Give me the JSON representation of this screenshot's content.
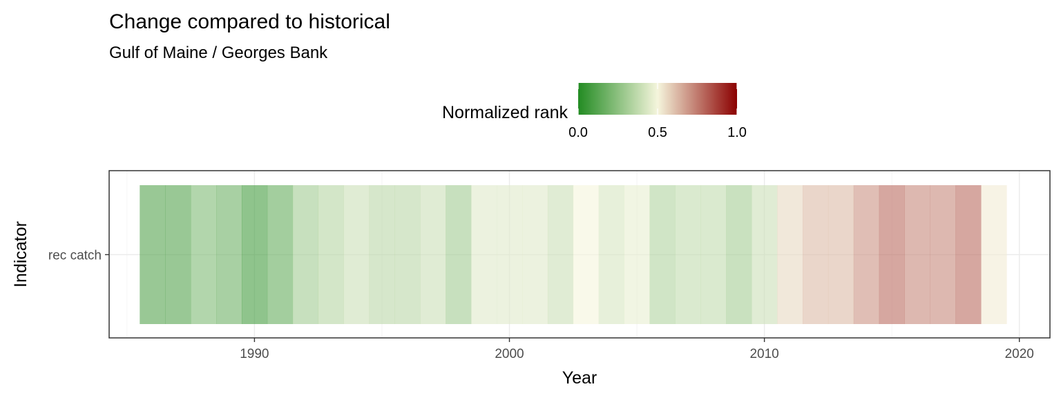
{
  "chart_data": {
    "type": "heatmap",
    "title": "Change compared to historical",
    "subtitle": "Gulf of Maine / Georges Bank",
    "xlabel": "Year",
    "ylabel": "Indicator",
    "xlim": [
      1984.3,
      2021.2
    ],
    "xticks": [
      1990,
      2000,
      2010,
      2020
    ],
    "rows": [
      "rec catch"
    ],
    "legend": {
      "title": "Normalized rank",
      "placement": "top",
      "range": [
        0,
        1
      ],
      "ticks": [
        "0.0",
        "0.5",
        "1.0"
      ],
      "colors": {
        "low": "#228B22",
        "mid": "#F5F5DC",
        "high": "#8B0000"
      }
    },
    "grid": true,
    "tile_opacity": 0.6,
    "x": [
      1986,
      1987,
      1988,
      1989,
      1990,
      1991,
      1992,
      1993,
      1994,
      1995,
      1996,
      1997,
      1998,
      1999,
      2000,
      2001,
      2002,
      2003,
      2004,
      2005,
      2006,
      2007,
      2008,
      2009,
      2010,
      2011,
      2012,
      2013,
      2014,
      2015,
      2016,
      2017,
      2018,
      2019
    ],
    "values": [
      0.12,
      0.12,
      0.22,
      0.18,
      0.08,
      0.16,
      0.3,
      0.35,
      0.4,
      0.36,
      0.36,
      0.4,
      0.3,
      0.45,
      0.45,
      0.45,
      0.4,
      0.5,
      0.43,
      0.47,
      0.34,
      0.38,
      0.38,
      0.31,
      0.4,
      0.56,
      0.62,
      0.62,
      0.7,
      0.78,
      0.72,
      0.72,
      0.78,
      0.52
    ]
  }
}
